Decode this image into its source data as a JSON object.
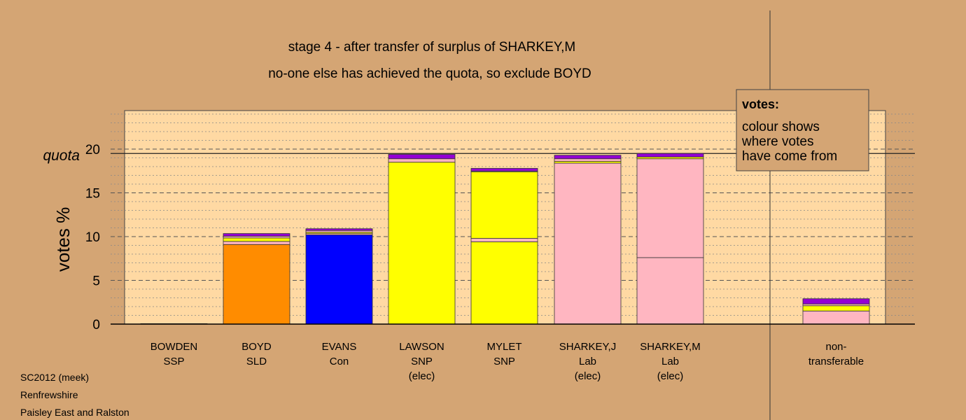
{
  "chart_data": {
    "type": "bar",
    "stacked": true,
    "title": "stage 4 - after transfer of surplus of SHARKEY,M",
    "subtitle": "no-one else has achieved the quota, so exclude BOYD",
    "ylabel": "votes %",
    "quota_label": "quota",
    "quota": 19.5,
    "ylim": [
      0,
      24.5
    ],
    "yticks": [
      0,
      5,
      10,
      15,
      20
    ],
    "minor_grid_step": 1,
    "categories": [
      {
        "lines": [
          "BOWDEN",
          "SSP"
        ]
      },
      {
        "lines": [
          "BOYD",
          "SLD"
        ]
      },
      {
        "lines": [
          "EVANS",
          "Con"
        ]
      },
      {
        "lines": [
          "LAWSON",
          "SNP",
          "(elec)"
        ]
      },
      {
        "lines": [
          "MYLET",
          "SNP"
        ]
      },
      {
        "lines": [
          "SHARKEY,J",
          "Lab",
          "(elec)"
        ]
      },
      {
        "lines": [
          "SHARKEY,M",
          "Lab",
          "(elec)"
        ]
      },
      {
        "lines": [
          "non-",
          "transferable"
        ]
      }
    ],
    "bars": [
      {
        "segments": [
          {
            "value": 0.05,
            "color": "#ff8c00"
          }
        ]
      },
      {
        "segments": [
          {
            "value": 9.1,
            "color": "#ff8c00"
          },
          {
            "value": 0.35,
            "color": "#ffb6c1"
          },
          {
            "value": 0.4,
            "color": "#ffff00"
          },
          {
            "value": 0.2,
            "color": "#ffb6c1"
          },
          {
            "value": 0.3,
            "color": "#9400d3"
          }
        ]
      },
      {
        "segments": [
          {
            "value": 10.2,
            "color": "#0000ff"
          },
          {
            "value": 0.15,
            "color": "#ffb6c1"
          },
          {
            "value": 0.15,
            "color": "#ffff00"
          },
          {
            "value": 0.2,
            "color": "#ffb6c1"
          },
          {
            "value": 0.2,
            "color": "#9400d3"
          }
        ]
      },
      {
        "segments": [
          {
            "value": 18.5,
            "color": "#ffff00"
          },
          {
            "value": 0.4,
            "color": "#ffb6c1"
          },
          {
            "value": 0.5,
            "color": "#9400d3"
          }
        ]
      },
      {
        "segments": [
          {
            "value": 9.4,
            "color": "#ffff00"
          },
          {
            "value": 0.4,
            "color": "#ffb6c1"
          },
          {
            "value": 7.6,
            "color": "#ffff00"
          },
          {
            "value": 0.1,
            "color": "#ffb6c1"
          },
          {
            "value": 0.3,
            "color": "#9400d3"
          }
        ]
      },
      {
        "segments": [
          {
            "value": 18.4,
            "color": "#ffb6c1"
          },
          {
            "value": 0.2,
            "color": "#ffff00"
          },
          {
            "value": 0.3,
            "color": "#ffb6c1"
          },
          {
            "value": 0.4,
            "color": "#9400d3"
          }
        ]
      },
      {
        "segments": [
          {
            "value": 7.6,
            "color": "#ffb6c1"
          },
          {
            "value": 11.3,
            "color": "#ffb6c1"
          },
          {
            "value": 0.2,
            "color": "#ffff00"
          },
          {
            "value": 0.4,
            "color": "#9400d3"
          }
        ]
      },
      {
        "segments": [
          {
            "value": 1.5,
            "color": "#ffb6c1"
          },
          {
            "value": 0.6,
            "color": "#ffff00"
          },
          {
            "value": 0.2,
            "color": "#ffb6c1"
          },
          {
            "value": 0.6,
            "color": "#9400d3"
          }
        ]
      }
    ],
    "legend_box": {
      "title": "votes:",
      "lines": [
        "colour shows",
        "where votes",
        "have come from"
      ],
      "placement": "top-right"
    },
    "footer_lines": [
      "SC2012 (meek)",
      "Renfrewshire",
      "Paisley East and Ralston"
    ],
    "colors": {
      "background": "#d4a574",
      "plot_area": "#ffd9a3"
    }
  }
}
